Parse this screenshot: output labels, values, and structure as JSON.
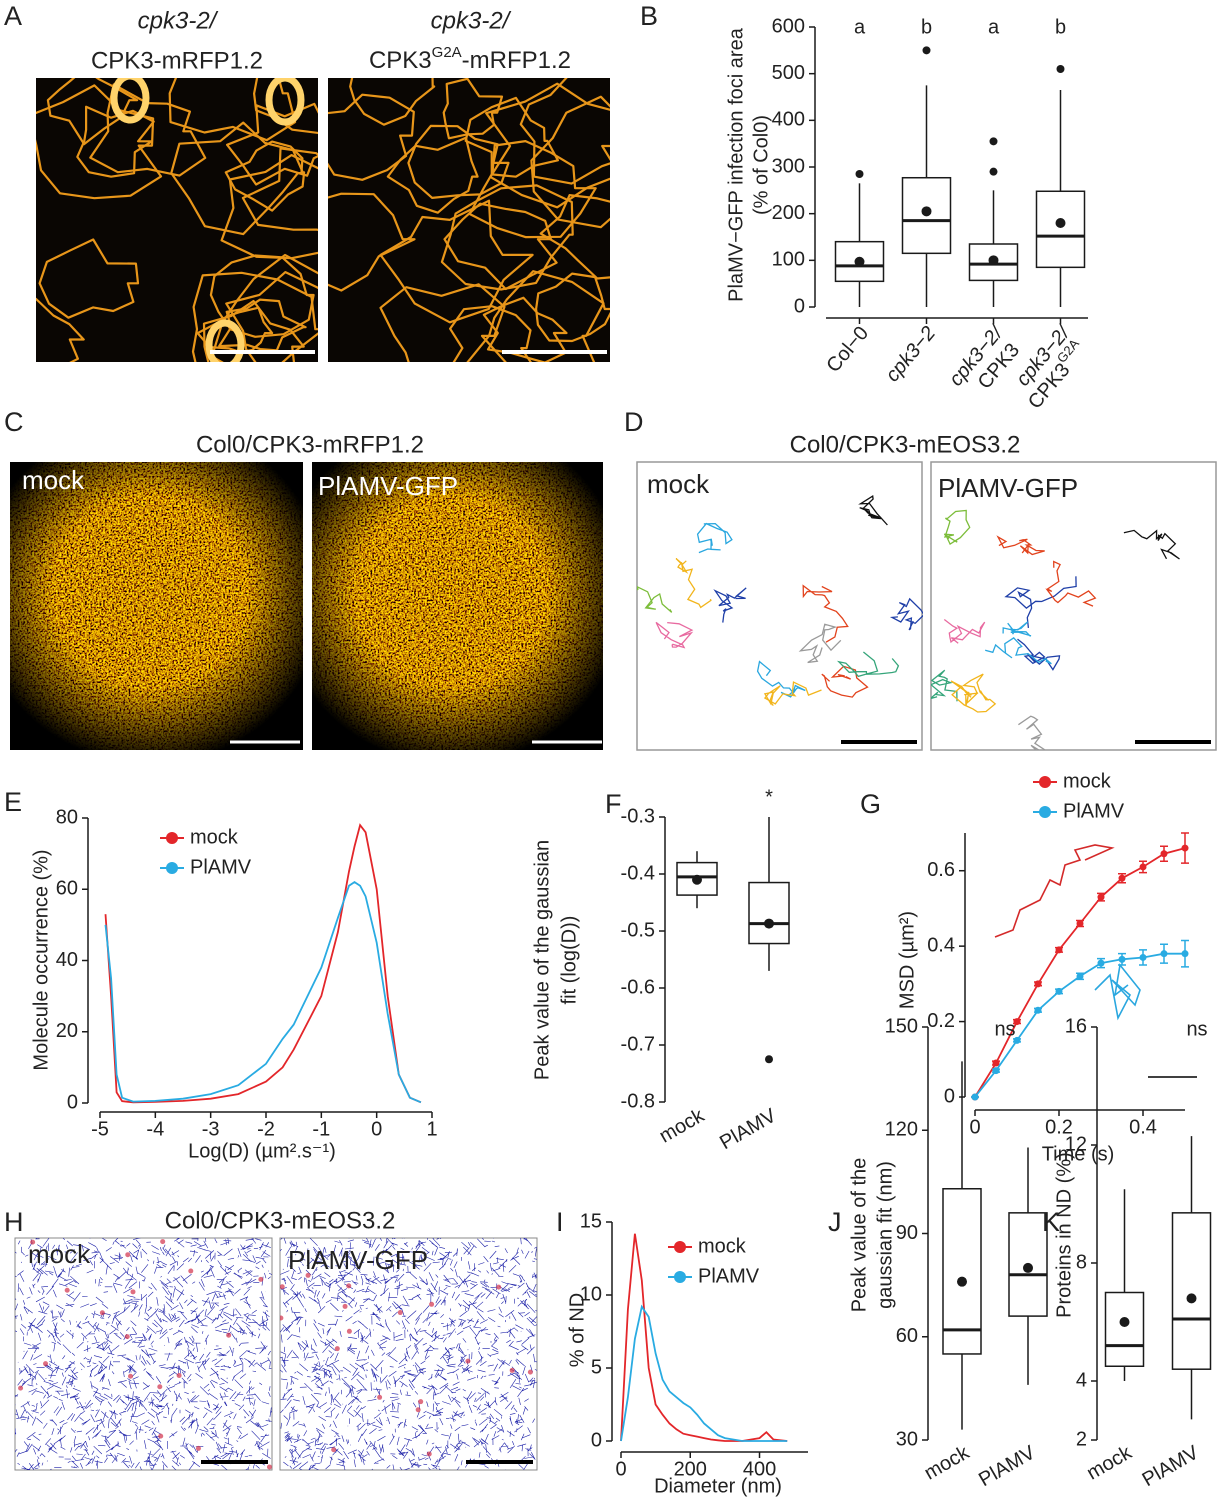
{
  "panel_a": {
    "letter": "A",
    "left_title": [
      "cpk3-2/",
      "CPK3-mRFP1.2"
    ],
    "right_title": [
      "cpk3-2/",
      "CPK3",
      "G2A",
      "-mRFP1.2"
    ]
  },
  "panel_c": {
    "letter": "C",
    "title": "Col0/CPK3-mRFP1.2",
    "labels": [
      "mock",
      "PlAMV-GFP"
    ]
  },
  "panel_d": {
    "letter": "D",
    "title": "Col0/CPK3-mEOS3.2",
    "labels": [
      "mock",
      "PlAMV-GFP"
    ]
  },
  "panel_h": {
    "letter": "H",
    "title": "Col0/CPK3-mEOS3.2",
    "labels": [
      "mock",
      "PlAMV-GFP"
    ]
  },
  "chart_data": [
    {
      "type": "box",
      "letter": "B",
      "ylabel": [
        "PlaMV−GFP infection foci area",
        "(% of Col0)"
      ],
      "categories": [
        "Col−0",
        "cpk3−2",
        [
          "cpk3−2/",
          "CPK3"
        ],
        [
          "cpk3−2/",
          "CPK3",
          "G2A"
        ]
      ],
      "annotations": [
        "a",
        "b",
        "a",
        "b"
      ],
      "ylim": [
        0,
        600
      ],
      "yticks": [
        0,
        100,
        200,
        300,
        400,
        500,
        600
      ],
      "boxes": [
        {
          "low": 0,
          "q1": 55,
          "median": 88,
          "q3": 140,
          "high": 265,
          "mean": 97,
          "outliers": [
            285
          ]
        },
        {
          "low": 0,
          "q1": 115,
          "median": 185,
          "q3": 277,
          "high": 475,
          "mean": 205,
          "outliers": [
            550
          ]
        },
        {
          "low": 0,
          "q1": 57,
          "median": 92,
          "q3": 135,
          "high": 250,
          "mean": 100,
          "outliers": [
            290,
            355
          ]
        },
        {
          "low": 0,
          "q1": 85,
          "median": 152,
          "q3": 248,
          "high": 465,
          "mean": 180,
          "outliers": [
            510
          ]
        }
      ]
    },
    {
      "type": "line",
      "letter": "E",
      "ylabel": [
        "Molecule occurrence (%)"
      ],
      "xlabel": "Log(D) (µm².s⁻¹)",
      "x": [
        -4.9,
        -4.8,
        -4.7,
        -4.6,
        -4.4,
        -4,
        -3.5,
        -3,
        -2.5,
        -2,
        -1.7,
        -1.5,
        -1,
        -0.7,
        -0.5,
        -0.4,
        -0.3,
        -0.2,
        0,
        0.2,
        0.4,
        0.6,
        0.8
      ],
      "series": [
        {
          "name": "mock",
          "color": "#e3262a",
          "values": [
            53,
            30,
            3,
            0.5,
            0.2,
            0.3,
            0.6,
            1.2,
            2.5,
            6,
            10,
            15,
            30,
            48,
            65,
            72,
            78,
            76,
            60,
            30,
            8,
            1.5,
            0.2
          ]
        },
        {
          "name": "PlAMV",
          "color": "#29abe2",
          "values": [
            50,
            35,
            8,
            1.5,
            0.4,
            0.6,
            1.2,
            2.5,
            5,
            11,
            18,
            22,
            38,
            52,
            61,
            62,
            61,
            58,
            45,
            25,
            8,
            1.5,
            0.2
          ]
        }
      ],
      "xlim": [
        -5,
        1
      ],
      "xticks": [
        -5,
        -4,
        -3,
        -2,
        -1,
        0,
        1
      ],
      "ylim": [
        0,
        80
      ],
      "yticks": [
        0,
        20,
        40,
        60,
        80
      ]
    },
    {
      "type": "box",
      "letter": "F",
      "ylabel": [
        "Peak value of the gaussian",
        "fit (log(D))"
      ],
      "categories": [
        "mock",
        "PlAMV"
      ],
      "annotation": "*",
      "ylim": [
        -0.8,
        -0.3
      ],
      "yticks": [
        -0.8,
        -0.7,
        -0.6,
        -0.5,
        -0.4,
        -0.3
      ],
      "boxes": [
        {
          "low": -0.46,
          "q1": -0.437,
          "median": -0.405,
          "q3": -0.38,
          "high": -0.36,
          "mean": -0.41,
          "outliers": []
        },
        {
          "low": -0.57,
          "q1": -0.522,
          "median": -0.487,
          "q3": -0.415,
          "high": -0.3,
          "mean": -0.487,
          "outliers": [
            -0.725
          ]
        }
      ]
    },
    {
      "type": "line",
      "letter": "G",
      "ylabel": [
        "MSD (µm²)"
      ],
      "xlabel": "Time (s)",
      "x": [
        0,
        0.05,
        0.1,
        0.15,
        0.2,
        0.25,
        0.3,
        0.35,
        0.4,
        0.45,
        0.5
      ],
      "series": [
        {
          "name": "mock",
          "color": "#e3262a",
          "values": [
            0,
            0.09,
            0.2,
            0.3,
            0.39,
            0.46,
            0.53,
            0.58,
            0.61,
            0.645,
            0.66
          ],
          "errors": [
            0,
            0.005,
            0.005,
            0.005,
            0.006,
            0.008,
            0.01,
            0.012,
            0.015,
            0.02,
            0.04
          ]
        },
        {
          "name": "PlAMV",
          "color": "#29abe2",
          "values": [
            0,
            0.07,
            0.15,
            0.23,
            0.28,
            0.32,
            0.355,
            0.365,
            0.37,
            0.38,
            0.38
          ],
          "errors": [
            0,
            0.004,
            0.004,
            0.005,
            0.006,
            0.008,
            0.012,
            0.015,
            0.02,
            0.025,
            0.035
          ]
        }
      ],
      "xlim": [
        0,
        0.5
      ],
      "xticks": [
        0,
        0.2,
        0.4
      ],
      "ylim": [
        0,
        0.7
      ],
      "yticks": [
        0,
        0.2,
        0.4,
        0.6
      ]
    },
    {
      "type": "line",
      "letter": "I",
      "ylabel": [
        "% of ND"
      ],
      "xlabel": "Diameter (nm)",
      "x": [
        0,
        20,
        40,
        60,
        80,
        100,
        120,
        140,
        160,
        180,
        200,
        220,
        240,
        260,
        280,
        300,
        350,
        400,
        420,
        440,
        480
      ],
      "series": [
        {
          "name": "mock",
          "color": "#e3262a",
          "values": [
            0,
            9,
            14.2,
            11,
            5,
            2.5,
            1.8,
            1.2,
            0.8,
            0.5,
            0.4,
            0.3,
            0.2,
            0.1,
            0.05,
            0,
            0,
            0.2,
            0.6,
            0.1,
            0
          ]
        },
        {
          "name": "PlAMV",
          "color": "#29abe2",
          "values": [
            0,
            3,
            7,
            9.2,
            8.5,
            6,
            4.2,
            3.4,
            3,
            2.6,
            2.3,
            1.8,
            1.2,
            0.8,
            0.4,
            0.2,
            0,
            0,
            0,
            0,
            0
          ]
        }
      ],
      "xlim": [
        0,
        540
      ],
      "xticks": [
        0,
        200,
        400
      ],
      "ylim": [
        0,
        15
      ],
      "yticks": [
        0,
        5,
        10,
        15
      ]
    },
    {
      "type": "box",
      "letter": "J",
      "ylabel": [
        "Peak value of the",
        "gaussian fit (nm)"
      ],
      "categories": [
        "mock",
        "PlAMV"
      ],
      "annotation": "ns",
      "ylim": [
        30,
        150
      ],
      "yticks": [
        30,
        60,
        90,
        120,
        150
      ],
      "boxes": [
        {
          "low": 33,
          "q1": 55,
          "median": 62,
          "q3": 103,
          "high": 140,
          "mean": 76,
          "outliers": []
        },
        {
          "low": 46,
          "q1": 66,
          "median": 78,
          "q3": 96,
          "high": 115,
          "mean": 80,
          "outliers": []
        }
      ]
    },
    {
      "type": "box",
      "letter": "K",
      "ylabel": [
        "Proteins in ND (%)"
      ],
      "categories": [
        "mock",
        "PlAMV"
      ],
      "annotation": "ns",
      "ylim": [
        2,
        16
      ],
      "yticks": [
        2,
        4,
        8,
        12,
        16
      ],
      "boxes": [
        {
          "low": 4,
          "q1": 4.5,
          "median": 5.2,
          "q3": 7,
          "high": 10.5,
          "mean": 6,
          "outliers": []
        },
        {
          "low": 2.7,
          "q1": 4.4,
          "median": 6.1,
          "q3": 9.7,
          "high": 12.3,
          "mean": 6.8,
          "outliers": []
        }
      ]
    }
  ]
}
